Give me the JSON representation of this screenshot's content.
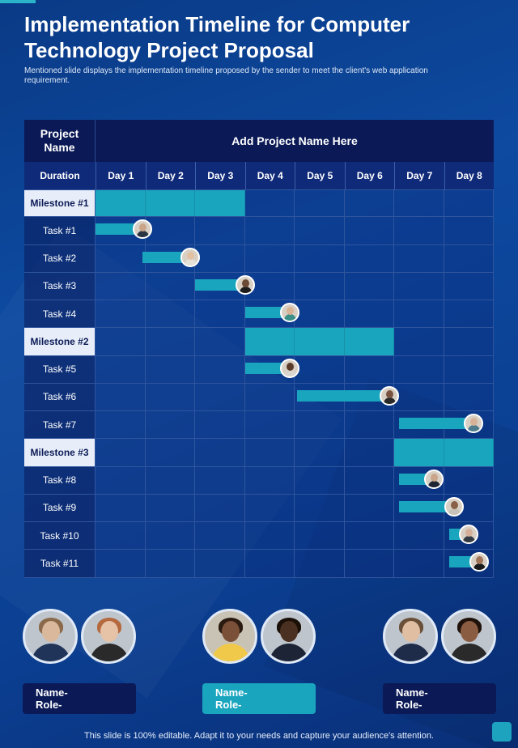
{
  "title": "Implementation Timeline for Computer Technology Project Proposal",
  "subtitle": "Mentioned slide displays the implementation timeline proposed by the sender to meet the client's web application requirement.",
  "gantt": {
    "project_label": "Project Name",
    "project_value": "Add Project Name Here",
    "duration_label": "Duration",
    "days": [
      "Day 1",
      "Day 2",
      "Day 3",
      "Day 4",
      "Day 5",
      "Day 6",
      "Day 7",
      "Day 8"
    ],
    "rows": [
      {
        "label": "Milestone #1",
        "type": "milestone",
        "days": [
          1,
          3
        ]
      },
      {
        "label": "Task #1",
        "type": "task",
        "start": 0,
        "end": 0.95,
        "avatar": {
          "skin": "#c9a58a",
          "shirt": "#2b3442"
        }
      },
      {
        "label": "Task #2",
        "type": "task",
        "start": 0.95,
        "end": 1.9,
        "avatar": {
          "skin": "#e2c0a2",
          "shirt": "#e6e2d8"
        }
      },
      {
        "label": "Task #3",
        "type": "task",
        "start": 2.0,
        "end": 3.0,
        "avatar": {
          "skin": "#6b4a36",
          "shirt": "#1d1d1d"
        }
      },
      {
        "label": "Task #4",
        "type": "task",
        "start": 3.0,
        "end": 3.9,
        "avatar": {
          "skin": "#d8b394",
          "shirt": "#3a8f86"
        }
      },
      {
        "label": "Milestone #2",
        "type": "milestone",
        "days": [
          4,
          6
        ]
      },
      {
        "label": "Task #5",
        "type": "task",
        "start": 3.0,
        "end": 3.9,
        "avatar": {
          "skin": "#5a3b2a",
          "shirt": "#d9d6cf"
        }
      },
      {
        "label": "Task #6",
        "type": "task",
        "start": 4.05,
        "end": 5.9,
        "avatar": {
          "skin": "#7a5440",
          "shirt": "#2a2a2a"
        }
      },
      {
        "label": "Task #7",
        "type": "task",
        "start": 6.1,
        "end": 7.6,
        "avatar": {
          "skin": "#d6b298",
          "shirt": "#4d7c8c"
        }
      },
      {
        "label": "Milestone #3",
        "type": "milestone",
        "days": [
          7,
          8
        ]
      },
      {
        "label": "Task #8",
        "type": "task",
        "start": 6.1,
        "end": 6.8,
        "avatar": {
          "skin": "#c9a58a",
          "shirt": "#1f2533"
        }
      },
      {
        "label": "Task #9",
        "type": "task",
        "start": 6.1,
        "end": 7.2,
        "avatar": {
          "skin": "#8a6048",
          "shirt": "#c7c2b8"
        }
      },
      {
        "label": "Task #10",
        "type": "task",
        "start": 7.1,
        "end": 7.5,
        "avatar": {
          "skin": "#d4b09a",
          "shirt": "#333a44"
        }
      },
      {
        "label": "Task #11",
        "type": "task",
        "start": 7.1,
        "end": 7.7,
        "avatar": {
          "skin": "#a07458",
          "shirt": "#1a1a1a"
        }
      }
    ]
  },
  "team": [
    {
      "name_label": "Name-",
      "role_label": "Role-",
      "style": "dark",
      "people": [
        {
          "skin": "#d9b89c",
          "hair": "#8a6a4a",
          "shirt": "#1f3458"
        },
        {
          "skin": "#e6c2a6",
          "hair": "#b4693e",
          "shirt": "#2a2a2a"
        }
      ]
    },
    {
      "name_label": "Name-",
      "role_label": "Role-",
      "style": "teal",
      "people": [
        {
          "skin": "#7a5038",
          "hair": "#2a1a10",
          "shirt": "#f0c94a"
        },
        {
          "skin": "#4a3020",
          "hair": "#1a1008",
          "shirt": "#1c2436"
        }
      ]
    },
    {
      "name_label": "Name-",
      "role_label": "Role-",
      "style": "dark",
      "people": [
        {
          "skin": "#e0bea2",
          "hair": "#6a5038",
          "shirt": "#1e2c4a"
        },
        {
          "skin": "#8a5c42",
          "hair": "#1e120a",
          "shirt": "#2a2a2a"
        }
      ]
    }
  ],
  "footer": "This slide is 100% editable. Adapt it to your needs and capture your audience's attention.",
  "colors": {
    "accent": "#1aa5bf",
    "navy": "#0b1a56",
    "background": "#0d4aa0"
  }
}
